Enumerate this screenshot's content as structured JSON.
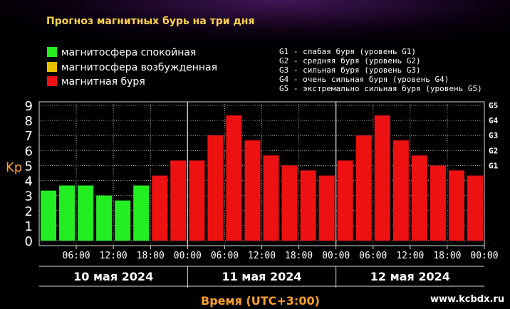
{
  "title": "Прогноз магнитных бурь на три дня",
  "legend": [
    {
      "label": "магнитосфера спокойная",
      "color": "#22ee22"
    },
    {
      "label": "магнитосфера возбужденная",
      "color": "#e8c000"
    },
    {
      "label": "магнитная буря",
      "color": "#ee1111"
    }
  ],
  "g_legend": [
    "G1 - слабая буря (уровень G1)",
    "G2 - средняя буря (уровень G2)",
    "G3 - сильная буря (уровень G3)",
    "G4 - очень сильная буря (уровень G4)",
    "G5 - экстремально сильная буря (уровень G5)"
  ],
  "xlabel": "Время (UTC+3:00)",
  "site": "www.kcbdx.ru",
  "chart_data": {
    "type": "bar",
    "ylabel": "Kp",
    "ylim": [
      0,
      9
    ],
    "yticks": [
      "0",
      "1",
      "2",
      "3",
      "4",
      "5",
      "6",
      "7",
      "8",
      "9"
    ],
    "g_ticks": [
      {
        "label": "G1",
        "kp": 5
      },
      {
        "label": "G2",
        "kp": 6
      },
      {
        "label": "G3",
        "kp": 7
      },
      {
        "label": "G4",
        "kp": 8
      },
      {
        "label": "G5",
        "kp": 9
      }
    ],
    "x_tick_labels": [
      "06:00",
      "12:00",
      "18:00",
      "00:00",
      "06:00",
      "12:00",
      "18:00",
      "00:00",
      "06:00",
      "12:00",
      "18:00",
      "00:00"
    ],
    "days": [
      "10 мая 2024",
      "11 мая 2024",
      "12 мая 2024"
    ],
    "grid": true,
    "values": [
      3.33,
      3.67,
      3.67,
      3.0,
      2.67,
      3.67,
      4.33,
      5.33,
      5.33,
      7.0,
      8.33,
      6.67,
      5.67,
      5.0,
      4.67,
      4.33,
      5.33,
      7.0,
      8.33,
      6.67,
      5.67,
      5.0,
      4.67,
      4.33
    ],
    "colors": [
      "#22ee22",
      "#22ee22",
      "#22ee22",
      "#22ee22",
      "#22ee22",
      "#22ee22",
      "#ee1111",
      "#ee1111",
      "#ee1111",
      "#ee1111",
      "#ee1111",
      "#ee1111",
      "#ee1111",
      "#ee1111",
      "#ee1111",
      "#ee1111",
      "#ee1111",
      "#ee1111",
      "#ee1111",
      "#ee1111",
      "#ee1111",
      "#ee1111",
      "#ee1111",
      "#ee1111"
    ]
  }
}
